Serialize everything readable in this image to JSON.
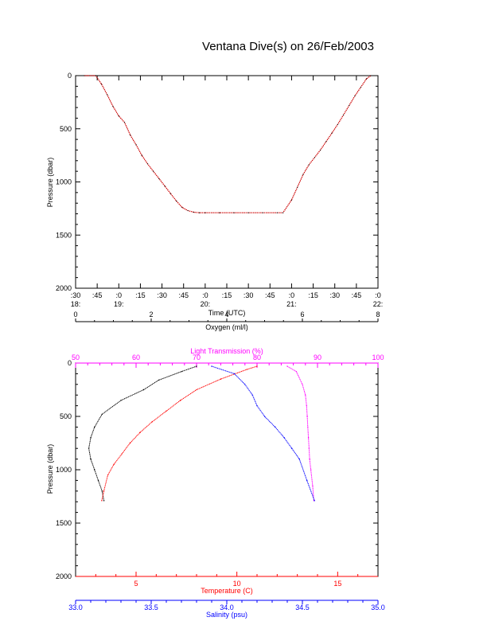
{
  "title": "Ventana Dive(s) on 26/Feb/2003",
  "colors": {
    "axis": "#000000",
    "depth_trace": "#cc0000",
    "oxygen": "#000000",
    "light_transmission": "#ff00ff",
    "temperature": "#ff0000",
    "salinity": "#0000ff"
  },
  "chart_data": [
    {
      "type": "line",
      "title": "Ventana Dive(s) on 26/Feb/2003",
      "xlabel": "Time (UTC)",
      "ylabel": "Pressure (dbar)",
      "xlim": [
        "18:30",
        "22:00"
      ],
      "ylim": [
        0,
        2000
      ],
      "y_inverted": true,
      "x_tick_minutes": [
        ":30",
        ":45",
        ":0",
        ":15",
        ":30",
        ":45",
        ":0",
        ":15",
        ":30",
        ":45",
        ":0",
        ":15",
        ":30",
        ":45",
        ":0"
      ],
      "x_tick_hours": [
        "18:",
        "19:",
        "20:",
        "21:",
        "22:"
      ],
      "y_ticks": [
        "0",
        "500",
        "1000",
        "1500",
        "2000"
      ],
      "series": [
        {
          "x": [
            "18:36",
            "18:44",
            "18:48",
            "18:52",
            "18:56",
            "19:00",
            "19:04",
            "19:08",
            "19:12",
            "19:16",
            "19:20",
            "19:24",
            "19:28",
            "19:32",
            "19:36",
            "19:40",
            "19:44",
            "19:48",
            "19:52",
            "19:56",
            "20:00",
            "20:10",
            "20:20",
            "20:30",
            "20:40",
            "20:50",
            "20:54",
            "21:00",
            "21:04",
            "21:08",
            "21:12",
            "21:16",
            "21:20",
            "21:24",
            "21:28",
            "21:32",
            "21:36",
            "21:40",
            "21:44",
            "21:48",
            "21:52",
            "21:55"
          ],
          "y": [
            0,
            0,
            80,
            180,
            290,
            380,
            440,
            560,
            650,
            750,
            830,
            900,
            970,
            1040,
            1110,
            1180,
            1240,
            1270,
            1285,
            1290,
            1290,
            1290,
            1290,
            1290,
            1290,
            1290,
            1290,
            1170,
            1050,
            930,
            840,
            770,
            700,
            620,
            540,
            460,
            370,
            280,
            190,
            110,
            30,
            0
          ]
        }
      ]
    },
    {
      "type": "line",
      "ylabel": "Pressure (dbar)",
      "ylim": [
        0,
        2000
      ],
      "y_inverted": true,
      "y_ticks": [
        "0",
        "500",
        "1000",
        "1500",
        "2000"
      ],
      "axes": {
        "oxygen": {
          "label": "Oxygen (ml/l)",
          "range": [
            0,
            8
          ],
          "ticks": [
            "0",
            "2",
            "4",
            "6",
            "8"
          ],
          "position": "top"
        },
        "light_transmission": {
          "label": "Light Transmission (%)",
          "range": [
            50,
            100
          ],
          "ticks": [
            "50",
            "60",
            "70",
            "80",
            "90",
            "100"
          ],
          "position": "top"
        },
        "temperature": {
          "label": "Temperature (C)",
          "range": [
            2,
            17
          ],
          "ticks": [
            "5",
            "10",
            "15"
          ],
          "position": "bottom"
        },
        "salinity": {
          "label": "Salinity (psu)",
          "range": [
            33.0,
            35.0
          ],
          "ticks": [
            "33.0",
            "33.5",
            "34.0",
            "34.5",
            "35.0"
          ],
          "position": "bottom"
        }
      },
      "series": [
        {
          "axis": "oxygen",
          "x": [
            3.2,
            2.8,
            2.2,
            1.8,
            1.2,
            0.7,
            0.5,
            0.4,
            0.35,
            0.4,
            0.5,
            0.6,
            0.7,
            0.75
          ],
          "y": [
            30,
            80,
            160,
            250,
            350,
            480,
            600,
            700,
            800,
            900,
            1000,
            1100,
            1200,
            1290
          ]
        },
        {
          "axis": "light_transmission",
          "x": [
            85,
            86.5,
            87.5,
            88,
            88.2,
            88.3,
            88.4,
            88.5,
            88.6,
            88.7,
            88.9,
            89.2,
            89.4
          ],
          "y": [
            30,
            80,
            200,
            300,
            400,
            500,
            600,
            700,
            800,
            900,
            1000,
            1150,
            1290
          ]
        },
        {
          "axis": "temperature",
          "x": [
            11,
            10.5,
            9.2,
            8.0,
            7.2,
            6.5,
            5.8,
            5.2,
            4.7,
            4.3,
            3.9,
            3.6,
            3.4,
            3.3
          ],
          "y": [
            30,
            60,
            150,
            250,
            350,
            450,
            550,
            650,
            750,
            850,
            950,
            1050,
            1200,
            1290
          ]
        },
        {
          "axis": "salinity",
          "x": [
            33.9,
            34.05,
            34.12,
            34.17,
            34.2,
            34.25,
            34.32,
            34.38,
            34.43,
            34.48,
            34.53,
            34.58
          ],
          "y": [
            30,
            100,
            200,
            300,
            400,
            500,
            600,
            700,
            800,
            900,
            1100,
            1290
          ]
        }
      ]
    }
  ]
}
